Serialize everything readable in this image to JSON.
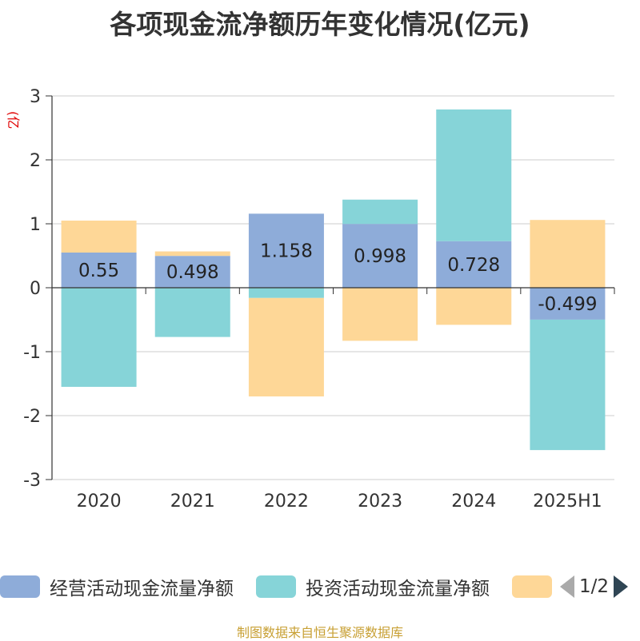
{
  "title": "各项现金流净额历年变化情况(亿元)",
  "unit_label": "(亿元)",
  "source": "制图数据来自恒生聚源数据库",
  "legend": {
    "items": [
      {
        "label": "经营活动现金流量净额",
        "color": "#8eacd9"
      },
      {
        "label": "投资活动现金流量净额",
        "color": "#86d4d8"
      },
      {
        "label": "",
        "color": "#fed797"
      }
    ],
    "page": "1/2"
  },
  "chart_data": {
    "type": "bar",
    "stacked": true,
    "categories": [
      "2020",
      "2021",
      "2022",
      "2023",
      "2024",
      "2025H1"
    ],
    "series": [
      {
        "name": "经营活动现金流量净额",
        "color": "#8eacd9",
        "values": [
          0.55,
          0.498,
          1.158,
          0.998,
          0.728,
          -0.499
        ],
        "labels": [
          "0.55",
          "0.498",
          "1.158",
          "0.998",
          "0.728",
          "-0.499"
        ]
      },
      {
        "name": "投资活动现金流量净额",
        "color": "#86d4d8",
        "values": [
          -1.55,
          -0.77,
          -0.16,
          0.38,
          2.06,
          -2.04
        ]
      },
      {
        "color": "#fed797",
        "values": [
          0.5,
          0.07,
          -1.54,
          -0.83,
          -0.58,
          1.06
        ]
      }
    ],
    "yticks": [
      3,
      2,
      1,
      0,
      -1,
      -2,
      -3
    ],
    "ylim": [
      -3,
      3
    ],
    "grid": true
  }
}
